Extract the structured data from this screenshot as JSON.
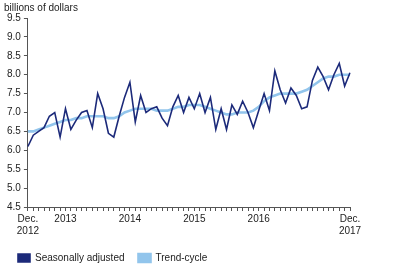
{
  "chart_data": {
    "type": "line",
    "y_label": "billions of dollars",
    "categories": [
      "Dec. 2012",
      null,
      null,
      null,
      null,
      null,
      null,
      "2013",
      null,
      null,
      null,
      null,
      null,
      null,
      null,
      null,
      null,
      null,
      null,
      "2014",
      null,
      null,
      null,
      null,
      null,
      null,
      null,
      null,
      null,
      null,
      null,
      "2015",
      null,
      null,
      null,
      null,
      null,
      null,
      null,
      null,
      null,
      null,
      null,
      "2016",
      null,
      null,
      null,
      null,
      null,
      null,
      null,
      null,
      null,
      null,
      null,
      null,
      null,
      null,
      null,
      null,
      "Dec. 2017"
    ],
    "series": [
      {
        "name": "Seasonally adjusted",
        "color": "#1c2a7a",
        "values": [
          6.1,
          6.4,
          6.5,
          6.6,
          6.9,
          7.0,
          6.35,
          7.1,
          6.55,
          6.8,
          7.0,
          7.05,
          6.6,
          7.5,
          7.1,
          6.45,
          6.35,
          6.9,
          7.4,
          7.8,
          6.75,
          7.45,
          7.0,
          7.1,
          7.15,
          6.85,
          6.65,
          7.15,
          7.45,
          7.0,
          7.4,
          7.1,
          7.5,
          7.0,
          7.4,
          6.55,
          7.1,
          6.55,
          7.2,
          6.95,
          7.3,
          7.0,
          6.6,
          7.05,
          7.5,
          7.05,
          8.1,
          7.6,
          7.25,
          7.65,
          7.45,
          7.1,
          7.15,
          7.85,
          8.2,
          7.95,
          7.6,
          8.0,
          8.3,
          7.7,
          8.05
        ]
      },
      {
        "name": "Trend-cycle",
        "color": "#92c5ec",
        "values": [
          6.5,
          6.5,
          6.55,
          6.6,
          6.65,
          6.7,
          6.75,
          6.8,
          6.8,
          6.85,
          6.85,
          6.9,
          6.9,
          6.9,
          6.9,
          6.85,
          6.85,
          6.9,
          7.0,
          7.05,
          7.1,
          7.1,
          7.1,
          7.1,
          7.05,
          7.05,
          7.05,
          7.1,
          7.15,
          7.15,
          7.2,
          7.2,
          7.2,
          7.15,
          7.1,
          7.05,
          7.0,
          6.95,
          6.95,
          7.0,
          7.0,
          7.0,
          7.05,
          7.15,
          7.3,
          7.4,
          7.45,
          7.5,
          7.5,
          7.5,
          7.5,
          7.55,
          7.6,
          7.7,
          7.8,
          7.9,
          7.95,
          7.95,
          8.0,
          8.0,
          8.0
        ]
      }
    ],
    "ylim": [
      4.5,
      9.5
    ],
    "yticks": [
      4.5,
      {
        "value": 5,
        "label": "5.0"
      },
      5.5,
      {
        "value": 6,
        "label": "6.0"
      },
      6.5,
      {
        "value": 7,
        "label": "7.0"
      },
      7.5,
      {
        "value": 8,
        "label": "8.0"
      },
      8.5,
      {
        "value": 9,
        "label": "9.0"
      },
      9.5
    ],
    "grid": false,
    "legend": "bottom"
  }
}
